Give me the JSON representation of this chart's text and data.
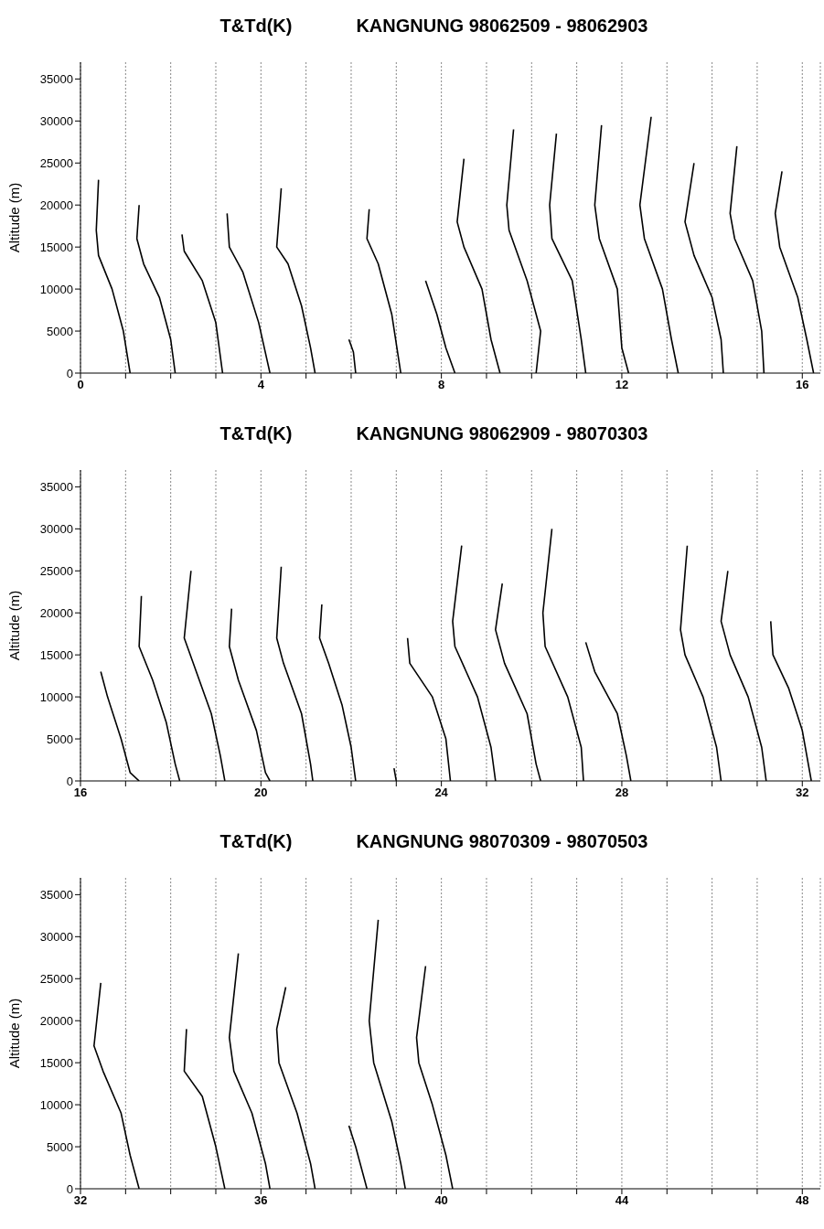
{
  "chart_data": [
    {
      "type": "line",
      "title": "T&Td(K)",
      "subtitle": "KANGNUNG 98062509  - 98062903",
      "ylabel": "Altitude (m)",
      "xlim": [
        0,
        16.4
      ],
      "ylim": [
        0,
        37000
      ],
      "yticks": [
        0,
        5000,
        10000,
        15000,
        20000,
        25000,
        30000,
        35000
      ],
      "xticks": [
        0,
        {
          "value": 1,
          "label": null
        },
        {
          "value": 2,
          "label": null
        },
        {
          "value": 3,
          "label": null
        },
        4,
        {
          "value": 5,
          "label": null
        },
        {
          "value": 6,
          "label": null
        },
        {
          "value": 7,
          "label": null
        },
        8,
        {
          "value": 9,
          "label": null
        },
        {
          "value": 10,
          "label": null
        },
        {
          "value": 11,
          "label": null
        },
        12,
        {
          "value": 13,
          "label": null
        },
        {
          "value": 14,
          "label": null
        },
        {
          "value": 15,
          "label": null
        },
        16
      ],
      "grid": "x",
      "series": [
        {
          "color": "#000000",
          "x": [
            0.4,
            0.35,
            0.4,
            0.7,
            0.95,
            1.1
          ],
          "values": [
            23000,
            17000,
            14000,
            10000,
            5000,
            0
          ]
        },
        {
          "color": "#000000",
          "x": [
            1.3,
            1.25,
            1.4,
            1.75,
            2.0,
            2.1
          ],
          "values": [
            20000,
            16000,
            13000,
            9000,
            4000,
            0
          ]
        },
        {
          "color": "#000000",
          "x": [
            2.25,
            2.3,
            2.7,
            3.0,
            3.15
          ],
          "values": [
            16500,
            14500,
            11000,
            6000,
            0
          ]
        },
        {
          "color": "#000000",
          "x": [
            3.25,
            3.3,
            3.6,
            3.95,
            4.2
          ],
          "values": [
            19000,
            15000,
            12000,
            6000,
            0
          ]
        },
        {
          "color": "#000000",
          "x": [
            4.45,
            4.35,
            4.6,
            4.9,
            5.1,
            5.2
          ],
          "values": [
            22000,
            15000,
            13000,
            8000,
            3000,
            0
          ]
        },
        {
          "color": "#000000",
          "x": [
            5.95,
            6.05,
            6.1
          ],
          "values": [
            4000,
            2500,
            0
          ]
        },
        {
          "color": "#000000",
          "x": [
            6.4,
            6.35,
            6.6,
            6.9,
            7.1
          ],
          "values": [
            19500,
            16000,
            13000,
            7000,
            0
          ]
        },
        {
          "color": "#000000",
          "x": [
            7.65,
            7.9,
            8.1,
            8.3
          ],
          "values": [
            11000,
            7000,
            3000,
            0
          ]
        },
        {
          "color": "#000000",
          "x": [
            8.5,
            8.35,
            8.5,
            8.9,
            9.1,
            9.3
          ],
          "values": [
            25500,
            18000,
            15000,
            10000,
            4000,
            0
          ]
        },
        {
          "color": "#000000",
          "x": [
            9.6,
            9.45,
            9.5,
            9.9,
            10.2,
            10.1
          ],
          "values": [
            29000,
            20000,
            17000,
            11000,
            5000,
            0
          ]
        },
        {
          "color": "#000000",
          "x": [
            10.55,
            10.4,
            10.45,
            10.9,
            11.1,
            11.2
          ],
          "values": [
            28500,
            20000,
            16000,
            11000,
            4000,
            0
          ]
        },
        {
          "color": "#000000",
          "x": [
            11.55,
            11.4,
            11.5,
            11.9,
            12.0,
            12.15
          ],
          "values": [
            29500,
            20000,
            16000,
            10000,
            3000,
            0
          ]
        },
        {
          "color": "#000000",
          "x": [
            12.65,
            12.4,
            12.5,
            12.9,
            13.1,
            13.25
          ],
          "values": [
            30500,
            20000,
            16000,
            10000,
            4000,
            0
          ]
        },
        {
          "color": "#000000",
          "x": [
            13.6,
            13.4,
            13.6,
            14.0,
            14.2,
            14.25
          ],
          "values": [
            25000,
            18000,
            14000,
            9000,
            4000,
            0
          ]
        },
        {
          "color": "#000000",
          "x": [
            14.55,
            14.4,
            14.5,
            14.9,
            15.1,
            15.15
          ],
          "values": [
            27000,
            19000,
            16000,
            11000,
            5000,
            0
          ]
        },
        {
          "color": "#000000",
          "x": [
            15.55,
            15.4,
            15.5,
            15.9,
            16.1,
            16.25
          ],
          "values": [
            24000,
            19000,
            15000,
            9000,
            4000,
            0
          ]
        }
      ]
    },
    {
      "type": "line",
      "title": "T&Td(K)",
      "subtitle": "KANGNUNG 98062909 - 98070303",
      "ylabel": "Altitude (m)",
      "xlim": [
        16,
        32.4
      ],
      "ylim": [
        0,
        37000
      ],
      "yticks": [
        0,
        5000,
        10000,
        15000,
        20000,
        25000,
        30000,
        35000
      ],
      "xticks": [
        16,
        {
          "value": 17,
          "label": null
        },
        {
          "value": 18,
          "label": null
        },
        {
          "value": 19,
          "label": null
        },
        20,
        {
          "value": 21,
          "label": null
        },
        {
          "value": 22,
          "label": null
        },
        {
          "value": 23,
          "label": null
        },
        24,
        {
          "value": 25,
          "label": null
        },
        {
          "value": 26,
          "label": null
        },
        {
          "value": 27,
          "label": null
        },
        28,
        {
          "value": 29,
          "label": null
        },
        {
          "value": 30,
          "label": null
        },
        {
          "value": 31,
          "label": null
        },
        32
      ],
      "grid": "x",
      "series": [
        {
          "color": "#000000",
          "x": [
            16.45,
            16.6,
            16.9,
            17.1,
            17.3
          ],
          "values": [
            13000,
            10000,
            5000,
            1000,
            0
          ]
        },
        {
          "color": "#000000",
          "x": [
            17.35,
            17.3,
            17.6,
            17.9,
            18.1,
            18.2
          ],
          "values": [
            22000,
            16000,
            12000,
            7000,
            2000,
            0
          ]
        },
        {
          "color": "#000000",
          "x": [
            18.45,
            18.3,
            18.5,
            18.9,
            19.1,
            19.2
          ],
          "values": [
            25000,
            17000,
            14000,
            8000,
            3000,
            0
          ]
        },
        {
          "color": "#000000",
          "x": [
            19.35,
            19.3,
            19.5,
            19.9,
            20.1,
            20.2
          ],
          "values": [
            20500,
            16000,
            12000,
            6000,
            1000,
            0
          ]
        },
        {
          "color": "#000000",
          "x": [
            20.45,
            20.35,
            20.5,
            20.9,
            21.1,
            21.15
          ],
          "values": [
            25500,
            17000,
            14000,
            8000,
            2000,
            0
          ]
        },
        {
          "color": "#000000",
          "x": [
            21.35,
            21.3,
            21.5,
            21.8,
            22.0,
            22.1
          ],
          "values": [
            21000,
            17000,
            14000,
            9000,
            4000,
            0
          ]
        },
        {
          "color": "#000000",
          "x": [
            22.95,
            23.0
          ],
          "values": [
            1500,
            0
          ]
        },
        {
          "color": "#000000",
          "x": [
            23.25,
            23.3,
            23.8,
            24.1,
            24.2
          ],
          "values": [
            17000,
            14000,
            10000,
            5000,
            0
          ]
        },
        {
          "color": "#000000",
          "x": [
            24.45,
            24.25,
            24.3,
            24.8,
            25.1,
            25.2
          ],
          "values": [
            28000,
            19000,
            16000,
            10000,
            4000,
            0
          ]
        },
        {
          "color": "#000000",
          "x": [
            25.35,
            25.2,
            25.4,
            25.9,
            26.1,
            26.2
          ],
          "values": [
            23500,
            18000,
            14000,
            8000,
            2000,
            0
          ]
        },
        {
          "color": "#000000",
          "x": [
            26.45,
            26.25,
            26.3,
            26.8,
            27.1,
            27.15
          ],
          "values": [
            30000,
            20000,
            16000,
            10000,
            4000,
            0
          ]
        },
        {
          "color": "#000000",
          "x": [
            27.2,
            27.4,
            27.9,
            28.1,
            28.2
          ],
          "values": [
            16500,
            13000,
            8000,
            3000,
            0
          ]
        },
        {
          "color": "#000000",
          "x": [
            29.45,
            29.3,
            29.4,
            29.8,
            30.1,
            30.2
          ],
          "values": [
            28000,
            18000,
            15000,
            10000,
            4000,
            0
          ]
        },
        {
          "color": "#000000",
          "x": [
            30.35,
            30.2,
            30.4,
            30.8,
            31.1,
            31.2
          ],
          "values": [
            25000,
            19000,
            15000,
            10000,
            4000,
            0
          ]
        },
        {
          "color": "#000000",
          "x": [
            31.3,
            31.35,
            31.7,
            32.0,
            32.2
          ],
          "values": [
            19000,
            15000,
            11000,
            6000,
            0
          ]
        }
      ]
    },
    {
      "type": "line",
      "title": "T&Td(K)",
      "subtitle": "KANGNUNG 98070309 - 98070503",
      "ylabel": "Altitude (m)",
      "xlim": [
        32,
        48.4
      ],
      "ylim": [
        0,
        37000
      ],
      "yticks": [
        0,
        5000,
        10000,
        15000,
        20000,
        25000,
        30000,
        35000
      ],
      "xticks": [
        32,
        {
          "value": 33,
          "label": null
        },
        {
          "value": 34,
          "label": null
        },
        {
          "value": 35,
          "label": null
        },
        36,
        {
          "value": 37,
          "label": null
        },
        {
          "value": 38,
          "label": null
        },
        {
          "value": 39,
          "label": null
        },
        40,
        {
          "value": 41,
          "label": null
        },
        {
          "value": 42,
          "label": null
        },
        {
          "value": 43,
          "label": null
        },
        44,
        {
          "value": 45,
          "label": null
        },
        {
          "value": 46,
          "label": null
        },
        {
          "value": 47,
          "label": null
        },
        48
      ],
      "grid": "x",
      "series": [
        {
          "color": "#000000",
          "x": [
            32.45,
            32.3,
            32.5,
            32.9,
            33.1,
            33.3
          ],
          "values": [
            24500,
            17000,
            14000,
            9000,
            4000,
            0
          ]
        },
        {
          "color": "#000000",
          "x": [
            34.35,
            34.3,
            34.7,
            35.0,
            35.2
          ],
          "values": [
            19000,
            14000,
            11000,
            5000,
            0
          ]
        },
        {
          "color": "#000000",
          "x": [
            35.5,
            35.3,
            35.4,
            35.8,
            36.1,
            36.2
          ],
          "values": [
            28000,
            18000,
            14000,
            9000,
            3000,
            0
          ]
        },
        {
          "color": "#000000",
          "x": [
            36.55,
            36.35,
            36.4,
            36.8,
            37.1,
            37.2
          ],
          "values": [
            24000,
            19000,
            15000,
            9000,
            3000,
            0
          ]
        },
        {
          "color": "#000000",
          "x": [
            37.95,
            38.1,
            38.3,
            38.35
          ],
          "values": [
            7500,
            5000,
            1000,
            0
          ]
        },
        {
          "color": "#000000",
          "x": [
            38.6,
            38.4,
            38.5,
            38.9,
            39.1,
            39.2
          ],
          "values": [
            32000,
            20000,
            15000,
            8000,
            3000,
            0
          ]
        },
        {
          "color": "#000000",
          "x": [
            39.65,
            39.45,
            39.5,
            39.8,
            40.1,
            40.25
          ],
          "values": [
            26500,
            18000,
            15000,
            10000,
            4000,
            0
          ]
        }
      ]
    }
  ]
}
